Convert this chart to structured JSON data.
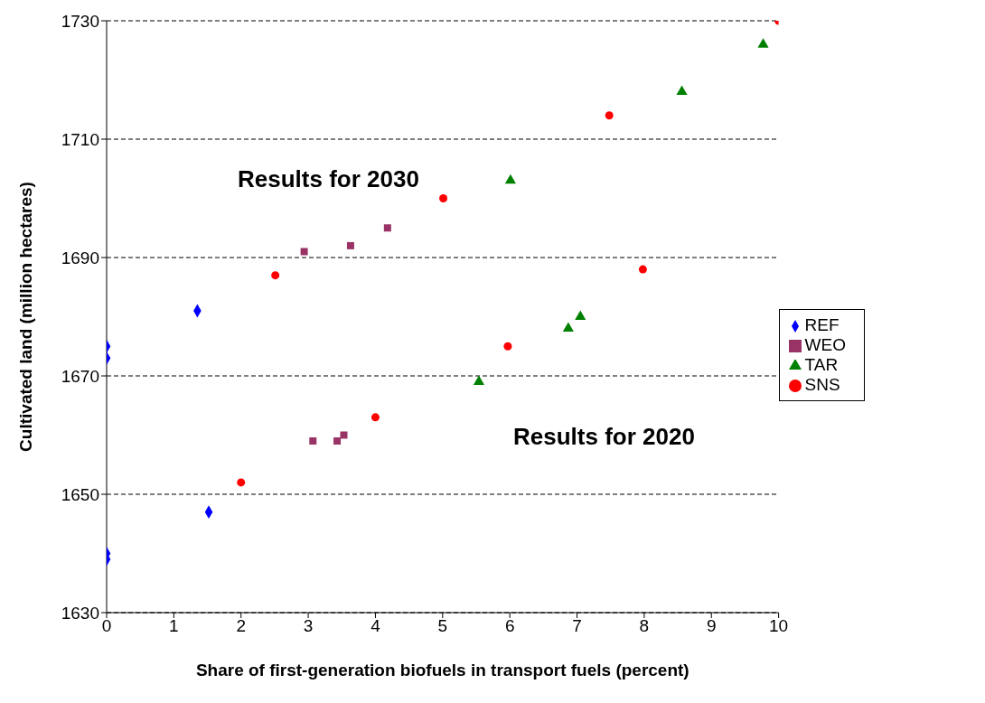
{
  "chart_data": {
    "type": "scatter",
    "xlabel": "Share of first-generation biofuels in transport fuels (percent)",
    "ylabel": "Cultivated land (million hectares)",
    "annotations": [
      "Results for 2030",
      "Results for 2020"
    ],
    "xlim": [
      0,
      10
    ],
    "xticks": [
      0,
      1,
      2,
      3,
      4,
      5,
      6,
      7,
      8,
      9,
      10
    ],
    "ylim": [
      1630,
      1730
    ],
    "yticks": [
      1630,
      1650,
      1670,
      1690,
      1710,
      1730
    ],
    "grid": "y",
    "legend": "right",
    "series": [
      {
        "name": "REF",
        "color": "#0000ff",
        "marker": "diamond",
        "x": [
          0,
          0,
          1.35,
          0,
          0,
          1.52
        ],
        "values": [
          1675,
          1673,
          1681,
          1640,
          1639,
          1647
        ]
      },
      {
        "name": "WEO",
        "color": "#993366",
        "marker": "square",
        "x": [
          2.94,
          3.63,
          4.18,
          3.07,
          3.43,
          3.53
        ],
        "values": [
          1691,
          1692,
          1695,
          1659,
          1659,
          1660
        ]
      },
      {
        "name": "TAR",
        "color": "#008000",
        "marker": "triangle",
        "x": [
          6.01,
          8.56,
          9.77,
          5.54,
          6.87,
          7.05
        ],
        "values": [
          1703,
          1718,
          1726,
          1669,
          1678,
          1680
        ]
      },
      {
        "name": "SNS",
        "color": "#ff0000",
        "marker": "circle",
        "x": [
          2.51,
          5.01,
          7.48,
          10,
          2,
          4,
          5.97,
          7.98
        ],
        "values": [
          1687,
          1700,
          1714,
          1730,
          1652,
          1663,
          1675,
          1688
        ]
      }
    ]
  }
}
